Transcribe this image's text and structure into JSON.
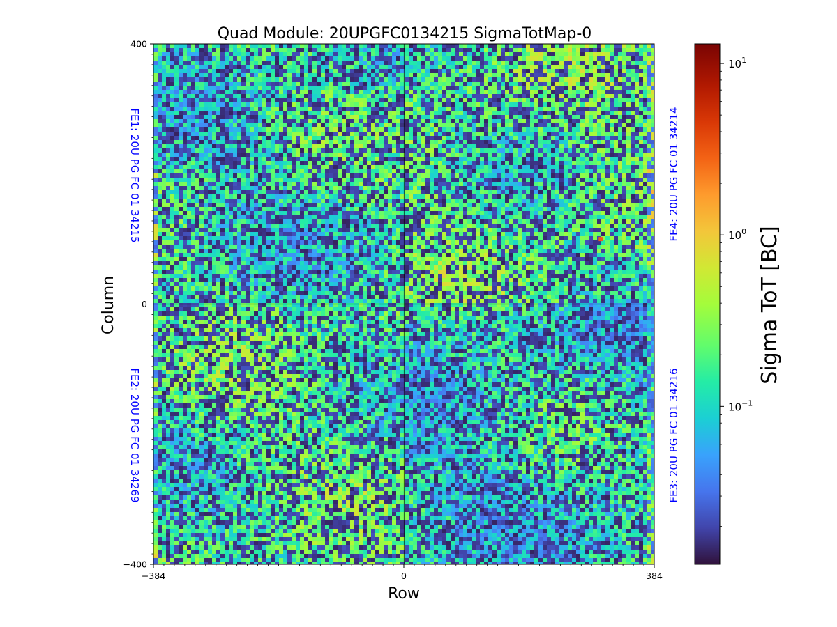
{
  "chart_data": {
    "type": "heatmap",
    "title": "Quad Module: 20UPGFC0134215 SigmaTotMap-0",
    "xlabel": "Row",
    "ylabel": "Column",
    "xlim": [
      -384,
      384
    ],
    "ylim": [
      -400,
      400
    ],
    "xticks": [
      "−384",
      "0",
      "384"
    ],
    "yticks": [
      "400",
      "0",
      "−400"
    ],
    "colorbar": {
      "label": "Sigma ToT [BC]",
      "scale": "log",
      "range": [
        0.012,
        13
      ],
      "ticks": [
        {
          "base": "10",
          "exp": "1",
          "value": 10
        },
        {
          "base": "10",
          "exp": "0",
          "value": 1
        },
        {
          "base": "10",
          "exp": "−1",
          "value": 0.1
        }
      ],
      "colormap": "turbo"
    },
    "chips": [
      {
        "label": "FE1: 20U PG FC 01 34215",
        "quadrant": "top-left",
        "mean_log_sigma": -0.85
      },
      {
        "label": "FE4: 20U PG FC 01 34214",
        "quadrant": "top-right",
        "mean_log_sigma": -0.7
      },
      {
        "label": "FE2: 20U PG FC 01 34269",
        "quadrant": "bottom-left",
        "mean_log_sigma": -0.75
      },
      {
        "label": "FE3: 20U PG FC 01 34216",
        "quadrant": "bottom-right",
        "mean_log_sigma": -0.95
      }
    ],
    "hot_pixel": {
      "row": 302,
      "column": 100,
      "value": 2.5
    }
  }
}
